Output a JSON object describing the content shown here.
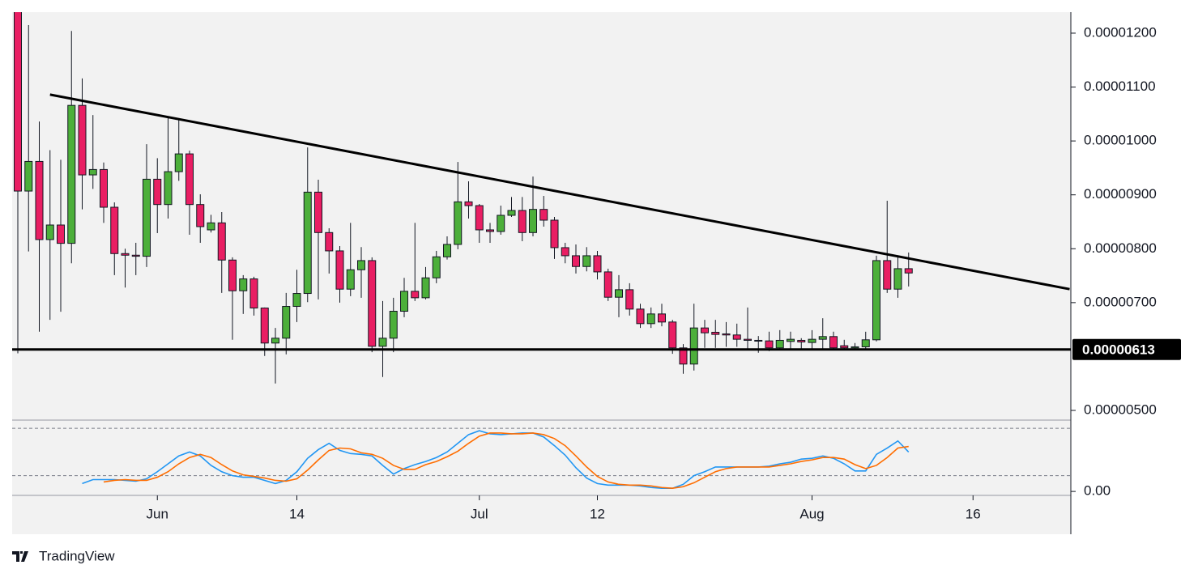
{
  "chart_data": {
    "type": "candlestick",
    "x": [
      "May 19",
      "May 20",
      "May 21",
      "May 22",
      "May 23",
      "May 24",
      "May 25",
      "May 26",
      "May 27",
      "May 28",
      "May 29",
      "May 30",
      "May 31",
      "Jun 1",
      "Jun 2",
      "Jun 3",
      "Jun 4",
      "Jun 5",
      "Jun 6",
      "Jun 7",
      "Jun 8",
      "Jun 9",
      "Jun 10",
      "Jun 11",
      "Jun 12",
      "Jun 13",
      "Jun 14",
      "Jun 15",
      "Jun 16",
      "Jun 17",
      "Jun 18",
      "Jun 19",
      "Jun 20",
      "Jun 21",
      "Jun 22",
      "Jun 23",
      "Jun 24",
      "Jun 25",
      "Jun 26",
      "Jun 27",
      "Jun 28",
      "Jun 29",
      "Jun 30",
      "Jul 1",
      "Jul 2",
      "Jul 3",
      "Jul 4",
      "Jul 5",
      "Jul 6",
      "Jul 7",
      "Jul 8",
      "Jul 9",
      "Jul 10",
      "Jul 11",
      "Jul 12",
      "Jul 13",
      "Jul 14",
      "Jul 15",
      "Jul 16",
      "Jul 17",
      "Jul 18",
      "Jul 19",
      "Jul 20",
      "Jul 21",
      "Jul 22",
      "Jul 23",
      "Jul 24",
      "Jul 25",
      "Jul 26",
      "Jul 27",
      "Jul 28",
      "Jul 29",
      "Jul 30",
      "Jul 31",
      "Aug 1",
      "Aug 2",
      "Aug 3",
      "Aug 4",
      "Aug 5",
      "Aug 6",
      "Aug 7",
      "Aug 8",
      "Aug 9",
      "Aug 10"
    ],
    "open": [
      1.24e-05,
      9.07e-06,
      9.62e-06,
      8.17e-06,
      8.44e-06,
      8.1e-06,
      1.066e-05,
      9.37e-06,
      9.47e-06,
      8.77e-06,
      7.91e-06,
      7.88e-06,
      7.86e-06,
      9.29e-06,
      8.82e-06,
      9.43e-06,
      9.76e-06,
      8.82e-06,
      8.35e-06,
      8.48e-06,
      7.79e-06,
      7.22e-06,
      7.44e-06,
      6.9e-06,
      6.25e-06,
      6.34e-06,
      6.93e-06,
      7.17e-06,
      9.05e-06,
      8.3e-06,
      7.96e-06,
      7.25e-06,
      7.61e-06,
      7.78e-06,
      6.19e-06,
      6.34e-06,
      6.84e-06,
      7.21e-06,
      7.09e-06,
      7.46e-06,
      7.85e-06,
      8.08e-06,
      8.87e-06,
      8.8e-06,
      8.35e-06,
      8.32e-06,
      8.62e-06,
      8.71e-06,
      8.3e-06,
      8.73e-06,
      8.53e-06,
      8.02e-06,
      7.87e-06,
      7.67e-06,
      7.87e-06,
      7.57e-06,
      7.1e-06,
      7.24e-06,
      6.88e-06,
      6.61e-06,
      6.79e-06,
      6.64e-06,
      6.16e-06,
      5.86e-06,
      6.53e-06,
      6.45e-06,
      6.42e-06,
      6.4e-06,
      6.32e-06,
      6.3e-06,
      6.29e-06,
      6.16e-06,
      6.28e-06,
      6.3e-06,
      6.26e-06,
      6.32e-06,
      6.37e-06,
      6.2e-06,
      6.16e-06,
      6.18e-06,
      6.31e-06,
      7.78e-06,
      7.25e-06,
      7.63e-06
    ],
    "high": [
      1.245e-05,
      1.215e-05,
      1.036e-05,
      9.83e-06,
      9.65e-06,
      1.204e-05,
      1.116e-05,
      1.048e-05,
      9.6e-06,
      8.86e-06,
      8e-06,
      8.11e-06,
      9.94e-06,
      9.68e-06,
      1.046e-05,
      1.039e-05,
      9.82e-06,
      9.01e-06,
      8.63e-06,
      8.68e-06,
      7.84e-06,
      7.51e-06,
      7.48e-06,
      6.91e-06,
      6.53e-06,
      7.18e-06,
      7.61e-06,
      9.88e-06,
      9.28e-06,
      8.38e-06,
      8.05e-06,
      8.48e-06,
      8.03e-06,
      7.84e-06,
      7.03e-06,
      7.09e-06,
      7.46e-06,
      8.48e-06,
      7.66e-06,
      7.96e-06,
      8.23e-06,
      9.61e-06,
      9.25e-06,
      8.83e-06,
      8.48e-06,
      8.8e-06,
      8.96e-06,
      8.96e-06,
      9.34e-06,
      8.98e-06,
      8.59e-06,
      8.11e-06,
      8.08e-06,
      8.03e-06,
      7.96e-06,
      7.63e-06,
      7.51e-06,
      7.36e-06,
      6.98e-06,
      6.91e-06,
      6.98e-06,
      6.68e-06,
      6.23e-06,
      6.98e-06,
      6.68e-06,
      6.68e-06,
      6.64e-06,
      6.61e-06,
      6.91e-06,
      6.38e-06,
      6.46e-06,
      6.49e-06,
      6.46e-06,
      6.34e-06,
      6.49e-06,
      6.71e-06,
      6.46e-06,
      6.31e-06,
      6.25e-06,
      6.46e-06,
      7.87e-06,
      8.89e-06,
      7.84e-06,
      7.93e-06
    ],
    "low": [
      6.06e-06,
      7.95e-06,
      6.46e-06,
      6.68e-06,
      6.83e-06,
      7.73e-06,
      8.73e-06,
      9.11e-06,
      8.48e-06,
      7.51e-06,
      7.28e-06,
      7.51e-06,
      7.66e-06,
      8.29e-06,
      8.56e-06,
      9.26e-06,
      8.26e-06,
      8.11e-06,
      8.3e-06,
      7.18e-06,
      6.31e-06,
      6.79e-06,
      6.76e-06,
      6.01e-06,
      5.5e-06,
      6.04e-06,
      6.64e-06,
      7.01e-06,
      7.06e-06,
      7.54e-06,
      7e-06,
      7.12e-06,
      7.09e-06,
      6.08e-06,
      5.62e-06,
      6.08e-06,
      6.73e-06,
      7.03e-06,
      7.06e-06,
      7.36e-06,
      7.8e-06,
      7.99e-06,
      8.56e-06,
      8.11e-06,
      8.11e-06,
      8.26e-06,
      8.59e-06,
      8.14e-06,
      8.23e-06,
      8.41e-06,
      7.81e-06,
      7.73e-06,
      7.54e-06,
      7.58e-06,
      7.43e-06,
      7.03e-06,
      6.73e-06,
      6.76e-06,
      6.53e-06,
      6.53e-06,
      6.56e-06,
      6.05e-06,
      5.68e-06,
      5.74e-06,
      6.16e-06,
      6.16e-06,
      6.18e-06,
      6.18e-06,
      6.13e-06,
      6.07e-06,
      6.1e-06,
      6.12e-06,
      6.14e-06,
      6.14e-06,
      6.14e-06,
      6.14e-06,
      6.12e-06,
      6.12e-06,
      6.12e-06,
      6.12e-06,
      6.28e-06,
      7.18e-06,
      7.09e-06,
      7.3e-06
    ],
    "close": [
      9.07e-06,
      9.62e-06,
      8.17e-06,
      8.44e-06,
      8.1e-06,
      1.066e-05,
      9.37e-06,
      9.47e-06,
      8.77e-06,
      7.91e-06,
      7.88e-06,
      7.86e-06,
      9.29e-06,
      8.82e-06,
      9.43e-06,
      9.76e-06,
      8.82e-06,
      8.41e-06,
      8.48e-06,
      7.79e-06,
      7.22e-06,
      7.44e-06,
      6.9e-06,
      6.25e-06,
      6.34e-06,
      6.93e-06,
      7.17e-06,
      9.05e-06,
      8.3e-06,
      7.96e-06,
      7.25e-06,
      7.61e-06,
      7.78e-06,
      6.19e-06,
      6.34e-06,
      6.84e-06,
      7.21e-06,
      7.09e-06,
      7.46e-06,
      7.85e-06,
      8.08e-06,
      8.87e-06,
      8.8e-06,
      8.35e-06,
      8.32e-06,
      8.62e-06,
      8.71e-06,
      8.3e-06,
      8.73e-06,
      8.53e-06,
      8.02e-06,
      7.87e-06,
      7.67e-06,
      7.87e-06,
      7.57e-06,
      7.1e-06,
      7.24e-06,
      6.88e-06,
      6.61e-06,
      6.79e-06,
      6.64e-06,
      6.16e-06,
      5.86e-06,
      6.53e-06,
      6.44e-06,
      6.41e-06,
      6.4e-06,
      6.32e-06,
      6.3e-06,
      6.29e-06,
      6.16e-06,
      6.3e-06,
      6.32e-06,
      6.27e-06,
      6.32e-06,
      6.37e-06,
      6.16e-06,
      6.16e-06,
      6.18e-06,
      6.31e-06,
      7.78e-06,
      7.25e-06,
      7.63e-06,
      7.55e-06
    ],
    "up_color": "#4caf3a",
    "down_color": "#e91e63",
    "ylim": [
      4.82e-06,
      1.239e-05
    ],
    "yticks": [
      {
        "value": 5e-06,
        "label": "0.00000500"
      },
      {
        "value": 7e-06,
        "label": "0.00000700"
      },
      {
        "value": 8e-06,
        "label": "0.00000800"
      },
      {
        "value": 9e-06,
        "label": "0.00000900"
      },
      {
        "value": 1e-05,
        "label": "0.00001000"
      },
      {
        "value": 1.1e-05,
        "label": "0.00001100"
      },
      {
        "value": 1.2e-05,
        "label": "0.00001200"
      }
    ],
    "xticks": [
      {
        "value": "Jun 1",
        "label": "Jun"
      },
      {
        "value": "Jun 14",
        "label": "14"
      },
      {
        "value": "Jul 1",
        "label": "Jul"
      },
      {
        "value": "Jul 12",
        "label": "12"
      },
      {
        "value": "Aug 1",
        "label": "Aug"
      },
      {
        "value": "Aug 16",
        "label": "16"
      }
    ],
    "trendline": {
      "start": {
        "x": "May 22",
        "y": 1.086e-05
      },
      "end": {
        "x": "Aug 25",
        "y": 7.25e-06
      }
    },
    "support": {
      "value": 6.13e-06,
      "label": "0.00000613"
    },
    "indicator": {
      "type": "line",
      "ylim": [
        -5,
        90.4
      ],
      "yticks": [
        {
          "value": 0,
          "label": "0.00"
        }
      ],
      "levels": [
        20,
        80
      ],
      "series": [
        {
          "color": "#2196f3",
          "values": [
            null,
            null,
            null,
            null,
            null,
            null,
            10,
            15,
            15,
            15,
            14,
            13,
            16,
            25,
            35,
            45,
            50,
            45,
            33,
            25,
            20,
            18,
            18,
            14,
            10,
            14,
            25,
            42,
            53,
            61,
            52,
            48,
            47,
            45,
            33,
            22,
            29,
            34,
            38,
            43,
            50,
            61,
            72,
            77,
            73,
            72,
            73,
            74,
            74,
            69,
            58,
            46,
            30,
            17,
            10,
            8,
            8,
            8,
            7,
            5,
            4,
            4,
            9,
            20,
            25,
            31,
            31,
            31,
            31,
            31,
            32,
            35,
            37,
            41,
            42,
            45,
            42,
            35,
            26,
            26,
            47,
            55,
            64,
            50
          ]
        },
        {
          "color": "#ff6d00",
          "values": [
            null,
            null,
            null,
            null,
            null,
            null,
            null,
            null,
            12,
            14,
            15,
            14,
            14,
            18,
            25,
            35,
            43,
            47,
            43,
            34,
            26,
            21,
            19,
            17,
            14,
            13,
            16,
            27,
            40,
            52,
            55,
            54,
            49,
            47,
            42,
            33,
            28,
            28,
            34,
            38,
            44,
            51,
            61,
            70,
            74,
            74,
            73,
            73,
            74,
            72,
            67,
            58,
            45,
            31,
            19,
            12,
            9,
            8,
            8,
            7,
            5,
            4,
            6,
            11,
            18,
            25,
            29,
            31,
            31,
            31,
            31,
            33,
            35,
            38,
            40,
            43,
            43,
            41,
            34,
            29,
            33,
            43,
            55,
            57
          ]
        }
      ]
    }
  },
  "branding": "TradingView"
}
